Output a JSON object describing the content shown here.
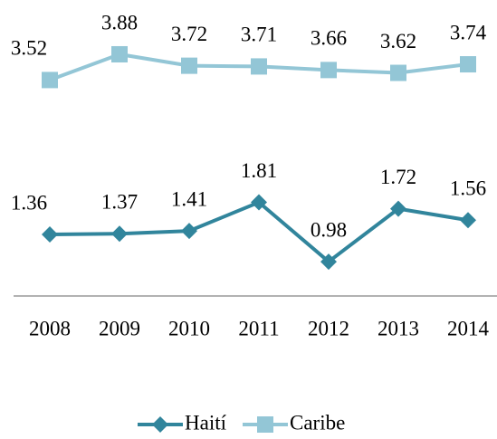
{
  "chart_data": {
    "type": "line",
    "categories": [
      "2008",
      "2009",
      "2010",
      "2011",
      "2012",
      "2013",
      "2014"
    ],
    "series": [
      {
        "name": "Haití",
        "color": "#31859c",
        "marker": "diamond",
        "values": [
          1.36,
          1.37,
          1.41,
          1.81,
          0.98,
          1.72,
          1.56
        ]
      },
      {
        "name": "Caribe",
        "color": "#93c6d6",
        "marker": "square",
        "values": [
          3.52,
          3.88,
          3.72,
          3.71,
          3.66,
          3.62,
          3.74
        ]
      }
    ],
    "ylim": [
      0.5,
      4.5
    ],
    "legend": "bottom"
  }
}
